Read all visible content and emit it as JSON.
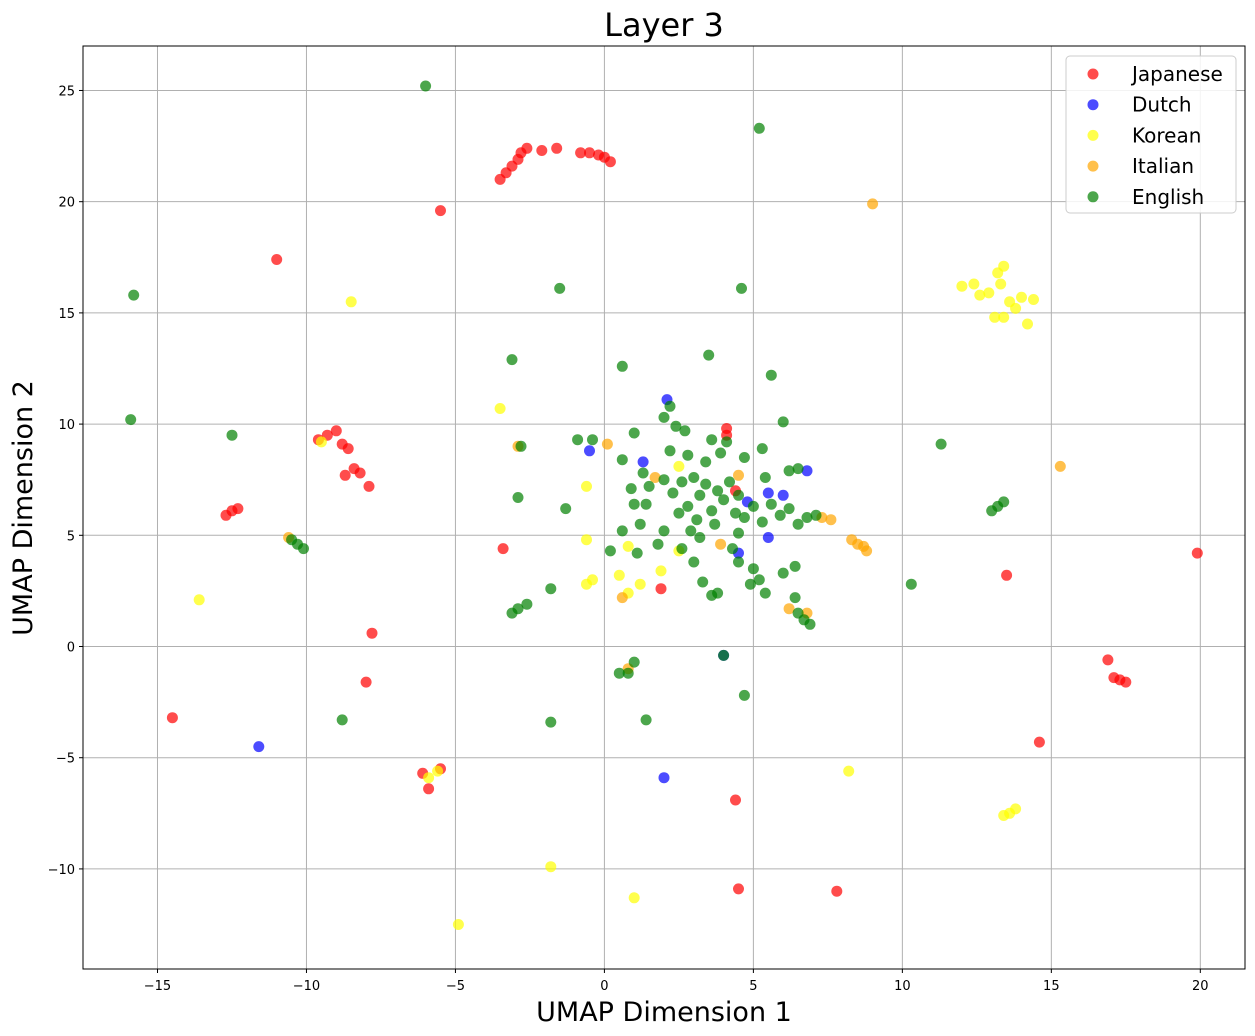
{
  "chart_data": {
    "type": "scatter",
    "title": "Layer 3",
    "xlabel": "UMAP Dimension 1",
    "ylabel": "UMAP Dimension 2",
    "xlim": [
      -17.5,
      21.5
    ],
    "ylim": [
      -14.5,
      27
    ],
    "xticks": [
      -15,
      -10,
      -5,
      0,
      5,
      10,
      15,
      20
    ],
    "yticks": [
      -10,
      -5,
      0,
      5,
      10,
      15,
      20,
      25
    ],
    "grid": true,
    "legend_position": "top-right",
    "series": [
      {
        "name": "Japanese",
        "color": "#ff0000",
        "points": [
          [
            -3.5,
            21.0
          ],
          [
            -3.3,
            21.3
          ],
          [
            -3.1,
            21.6
          ],
          [
            -2.9,
            21.9
          ],
          [
            -2.8,
            22.2
          ],
          [
            -2.6,
            22.4
          ],
          [
            -2.1,
            22.3
          ],
          [
            -1.6,
            22.4
          ],
          [
            -0.8,
            22.2
          ],
          [
            -0.5,
            22.2
          ],
          [
            -0.2,
            22.1
          ],
          [
            0.0,
            22.0
          ],
          [
            0.2,
            21.8
          ],
          [
            -5.5,
            19.6
          ],
          [
            -11.0,
            17.4
          ],
          [
            -9.6,
            9.3
          ],
          [
            -9.3,
            9.5
          ],
          [
            -9.0,
            9.7
          ],
          [
            -8.8,
            9.1
          ],
          [
            -8.6,
            8.9
          ],
          [
            -8.4,
            8.0
          ],
          [
            -8.2,
            7.8
          ],
          [
            -8.7,
            7.7
          ],
          [
            -7.9,
            7.2
          ],
          [
            -12.7,
            5.9
          ],
          [
            -12.5,
            6.1
          ],
          [
            -12.3,
            6.2
          ],
          [
            -3.4,
            4.4
          ],
          [
            -7.8,
            0.6
          ],
          [
            -8.0,
            -1.6
          ],
          [
            -14.5,
            -3.2
          ],
          [
            -6.1,
            -5.7
          ],
          [
            -5.9,
            -6.4
          ],
          [
            -5.5,
            -5.5
          ],
          [
            4.1,
            9.5
          ],
          [
            4.1,
            9.8
          ],
          [
            4.4,
            7.0
          ],
          [
            1.9,
            2.6
          ],
          [
            4.4,
            -6.9
          ],
          [
            4.5,
            -10.9
          ],
          [
            7.8,
            -11.0
          ],
          [
            13.5,
            3.2
          ],
          [
            14.6,
            -4.3
          ],
          [
            16.9,
            -0.6
          ],
          [
            17.1,
            -1.4
          ],
          [
            17.3,
            -1.5
          ],
          [
            17.5,
            -1.6
          ],
          [
            19.9,
            4.2
          ]
        ]
      },
      {
        "name": "Dutch",
        "color": "#0000ff",
        "points": [
          [
            -11.6,
            -4.5
          ],
          [
            2.0,
            -5.9
          ],
          [
            1.3,
            8.3
          ],
          [
            5.5,
            6.9
          ],
          [
            6.0,
            6.8
          ],
          [
            6.8,
            7.9
          ],
          [
            5.5,
            4.9
          ],
          [
            4.0,
            -0.4
          ],
          [
            4.5,
            4.2
          ],
          [
            4.8,
            6.5
          ],
          [
            2.1,
            11.1
          ],
          [
            -0.5,
            8.8
          ]
        ]
      },
      {
        "name": "Korean",
        "color": "#ffff00",
        "points": [
          [
            -13.6,
            2.1
          ],
          [
            -8.5,
            15.5
          ],
          [
            -9.5,
            9.2
          ],
          [
            -3.5,
            10.7
          ],
          [
            -0.6,
            7.2
          ],
          [
            -0.6,
            4.8
          ],
          [
            -0.4,
            3.0
          ],
          [
            -0.6,
            2.8
          ],
          [
            0.5,
            3.2
          ],
          [
            1.2,
            2.8
          ],
          [
            0.8,
            4.5
          ],
          [
            2.5,
            4.3
          ],
          [
            2.5,
            8.1
          ],
          [
            1.9,
            3.4
          ],
          [
            0.8,
            2.4
          ],
          [
            -5.9,
            -5.9
          ],
          [
            -5.6,
            -5.6
          ],
          [
            -1.8,
            -9.9
          ],
          [
            1.0,
            -11.3
          ],
          [
            -4.9,
            -12.5
          ],
          [
            8.2,
            -5.6
          ],
          [
            13.4,
            -7.6
          ],
          [
            13.6,
            -7.5
          ],
          [
            13.8,
            -7.3
          ],
          [
            12.0,
            16.2
          ],
          [
            12.4,
            16.3
          ],
          [
            12.6,
            15.8
          ],
          [
            12.9,
            15.9
          ],
          [
            13.2,
            16.8
          ],
          [
            13.4,
            17.1
          ],
          [
            13.3,
            16.3
          ],
          [
            13.6,
            15.5
          ],
          [
            13.8,
            15.2
          ],
          [
            14.0,
            15.7
          ],
          [
            14.2,
            14.5
          ],
          [
            14.4,
            15.6
          ],
          [
            13.1,
            14.8
          ],
          [
            13.4,
            14.8
          ]
        ]
      },
      {
        "name": "Italian",
        "color": "#ffa500",
        "points": [
          [
            9.0,
            19.9
          ],
          [
            15.3,
            8.1
          ],
          [
            -2.9,
            9.0
          ],
          [
            -10.6,
            4.9
          ],
          [
            7.3,
            5.8
          ],
          [
            7.6,
            5.7
          ],
          [
            8.3,
            4.8
          ],
          [
            8.5,
            4.6
          ],
          [
            8.7,
            4.5
          ],
          [
            8.8,
            4.3
          ],
          [
            6.2,
            1.7
          ],
          [
            6.8,
            1.5
          ],
          [
            3.9,
            4.6
          ],
          [
            4.5,
            7.7
          ],
          [
            1.7,
            7.6
          ],
          [
            0.1,
            9.1
          ],
          [
            0.6,
            2.2
          ],
          [
            0.8,
            -1.0
          ]
        ]
      },
      {
        "name": "English",
        "color": "#008000",
        "points": [
          [
            -6.0,
            25.2
          ],
          [
            5.2,
            23.3
          ],
          [
            -15.8,
            15.8
          ],
          [
            -1.5,
            16.1
          ],
          [
            4.6,
            16.1
          ],
          [
            -15.9,
            10.2
          ],
          [
            -12.5,
            9.5
          ],
          [
            -3.1,
            12.9
          ],
          [
            0.6,
            12.6
          ],
          [
            3.5,
            13.1
          ],
          [
            5.6,
            12.2
          ],
          [
            6.0,
            10.1
          ],
          [
            11.3,
            9.1
          ],
          [
            -2.8,
            9.0
          ],
          [
            -2.9,
            6.7
          ],
          [
            -1.3,
            6.2
          ],
          [
            -0.9,
            9.3
          ],
          [
            -0.4,
            9.3
          ],
          [
            -10.5,
            4.8
          ],
          [
            -10.3,
            4.6
          ],
          [
            -10.1,
            4.4
          ],
          [
            -3.1,
            1.5
          ],
          [
            -2.9,
            1.7
          ],
          [
            -2.6,
            1.9
          ],
          [
            -1.8,
            2.6
          ],
          [
            -8.8,
            -3.3
          ],
          [
            -1.8,
            -3.4
          ],
          [
            1.4,
            -3.3
          ],
          [
            0.5,
            -1.2
          ],
          [
            0.8,
            -1.2
          ],
          [
            1.0,
            -0.7
          ],
          [
            4.0,
            -0.4
          ],
          [
            4.7,
            -2.2
          ],
          [
            13.0,
            6.1
          ],
          [
            13.2,
            6.3
          ],
          [
            13.4,
            6.5
          ],
          [
            10.3,
            2.8
          ],
          [
            1.5,
            7.2
          ],
          [
            2.0,
            7.5
          ],
          [
            2.3,
            6.9
          ],
          [
            2.6,
            7.4
          ],
          [
            2.8,
            6.3
          ],
          [
            3.0,
            7.6
          ],
          [
            3.2,
            6.8
          ],
          [
            3.4,
            7.3
          ],
          [
            3.6,
            6.1
          ],
          [
            3.8,
            7.0
          ],
          [
            4.0,
            6.6
          ],
          [
            4.2,
            7.4
          ],
          [
            4.4,
            6.0
          ],
          [
            2.5,
            6.0
          ],
          [
            3.1,
            5.7
          ],
          [
            3.7,
            5.5
          ],
          [
            4.5,
            6.8
          ],
          [
            4.7,
            5.8
          ],
          [
            5.0,
            6.3
          ],
          [
            5.3,
            5.6
          ],
          [
            5.6,
            6.4
          ],
          [
            5.9,
            5.9
          ],
          [
            6.2,
            6.2
          ],
          [
            6.5,
            5.5
          ],
          [
            6.8,
            5.8
          ],
          [
            6.2,
            7.9
          ],
          [
            6.5,
            8.0
          ],
          [
            2.0,
            5.2
          ],
          [
            1.4,
            6.4
          ],
          [
            1.2,
            5.5
          ],
          [
            2.2,
            8.8
          ],
          [
            2.8,
            8.6
          ],
          [
            3.4,
            8.3
          ],
          [
            3.9,
            8.7
          ],
          [
            3.6,
            9.3
          ],
          [
            2.2,
            10.8
          ],
          [
            1.0,
            9.6
          ],
          [
            0.6,
            8.4
          ],
          [
            1.3,
            7.8
          ],
          [
            1.8,
            4.6
          ],
          [
            1.1,
            4.2
          ],
          [
            2.0,
            10.3
          ],
          [
            2.4,
            9.9
          ],
          [
            4.1,
            9.2
          ],
          [
            5.3,
            8.9
          ],
          [
            4.7,
            8.5
          ],
          [
            5.4,
            7.6
          ],
          [
            2.7,
            9.7
          ],
          [
            3.0,
            3.8
          ],
          [
            3.8,
            2.4
          ],
          [
            3.6,
            2.3
          ],
          [
            4.5,
            3.8
          ],
          [
            5.0,
            3.5
          ],
          [
            5.2,
            3.0
          ],
          [
            5.4,
            2.4
          ],
          [
            6.0,
            3.3
          ],
          [
            6.4,
            3.6
          ],
          [
            6.7,
            1.2
          ],
          [
            6.9,
            1.0
          ],
          [
            6.5,
            1.5
          ],
          [
            4.9,
            2.8
          ],
          [
            3.3,
            2.9
          ],
          [
            2.6,
            4.4
          ],
          [
            0.2,
            4.3
          ],
          [
            0.6,
            5.2
          ],
          [
            1.0,
            6.4
          ],
          [
            0.9,
            7.1
          ],
          [
            4.3,
            4.4
          ],
          [
            3.2,
            4.9
          ],
          [
            2.9,
            5.2
          ],
          [
            7.1,
            5.9
          ],
          [
            6.4,
            2.2
          ],
          [
            4.5,
            5.1
          ]
        ]
      }
    ]
  }
}
